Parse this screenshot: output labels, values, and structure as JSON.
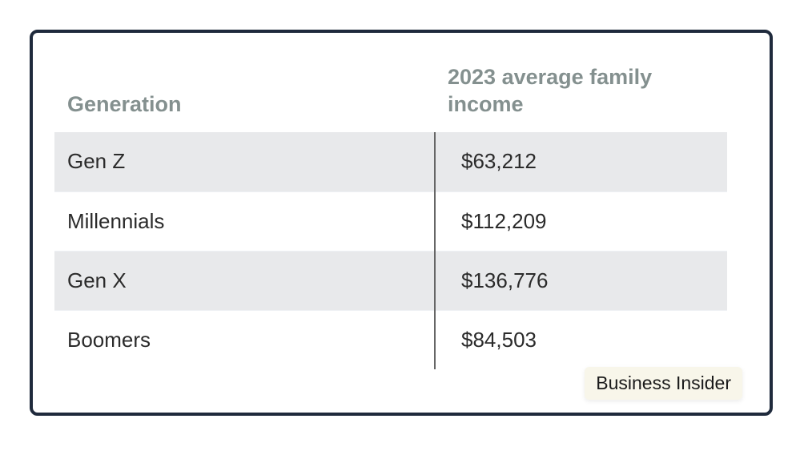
{
  "chart_data": {
    "type": "table",
    "columns": [
      "Generation",
      "2023 average family income"
    ],
    "rows": [
      {
        "generation": "Gen Z",
        "income": "$63,212"
      },
      {
        "generation": "Millennials",
        "income": "$112,209"
      },
      {
        "generation": "Gen X",
        "income": "$136,776"
      },
      {
        "generation": "Boomers",
        "income": "$84,503"
      }
    ],
    "values": [
      63212,
      112209,
      136776,
      84503
    ],
    "categories": [
      "Gen Z",
      "Millennials",
      "Gen X",
      "Boomers"
    ]
  },
  "source": "Business Insider",
  "colors": {
    "border": "#1f2a3c",
    "header_text": "#84908f",
    "stripe": "#e8e9eb",
    "badge_bg": "#f8f6ea"
  }
}
